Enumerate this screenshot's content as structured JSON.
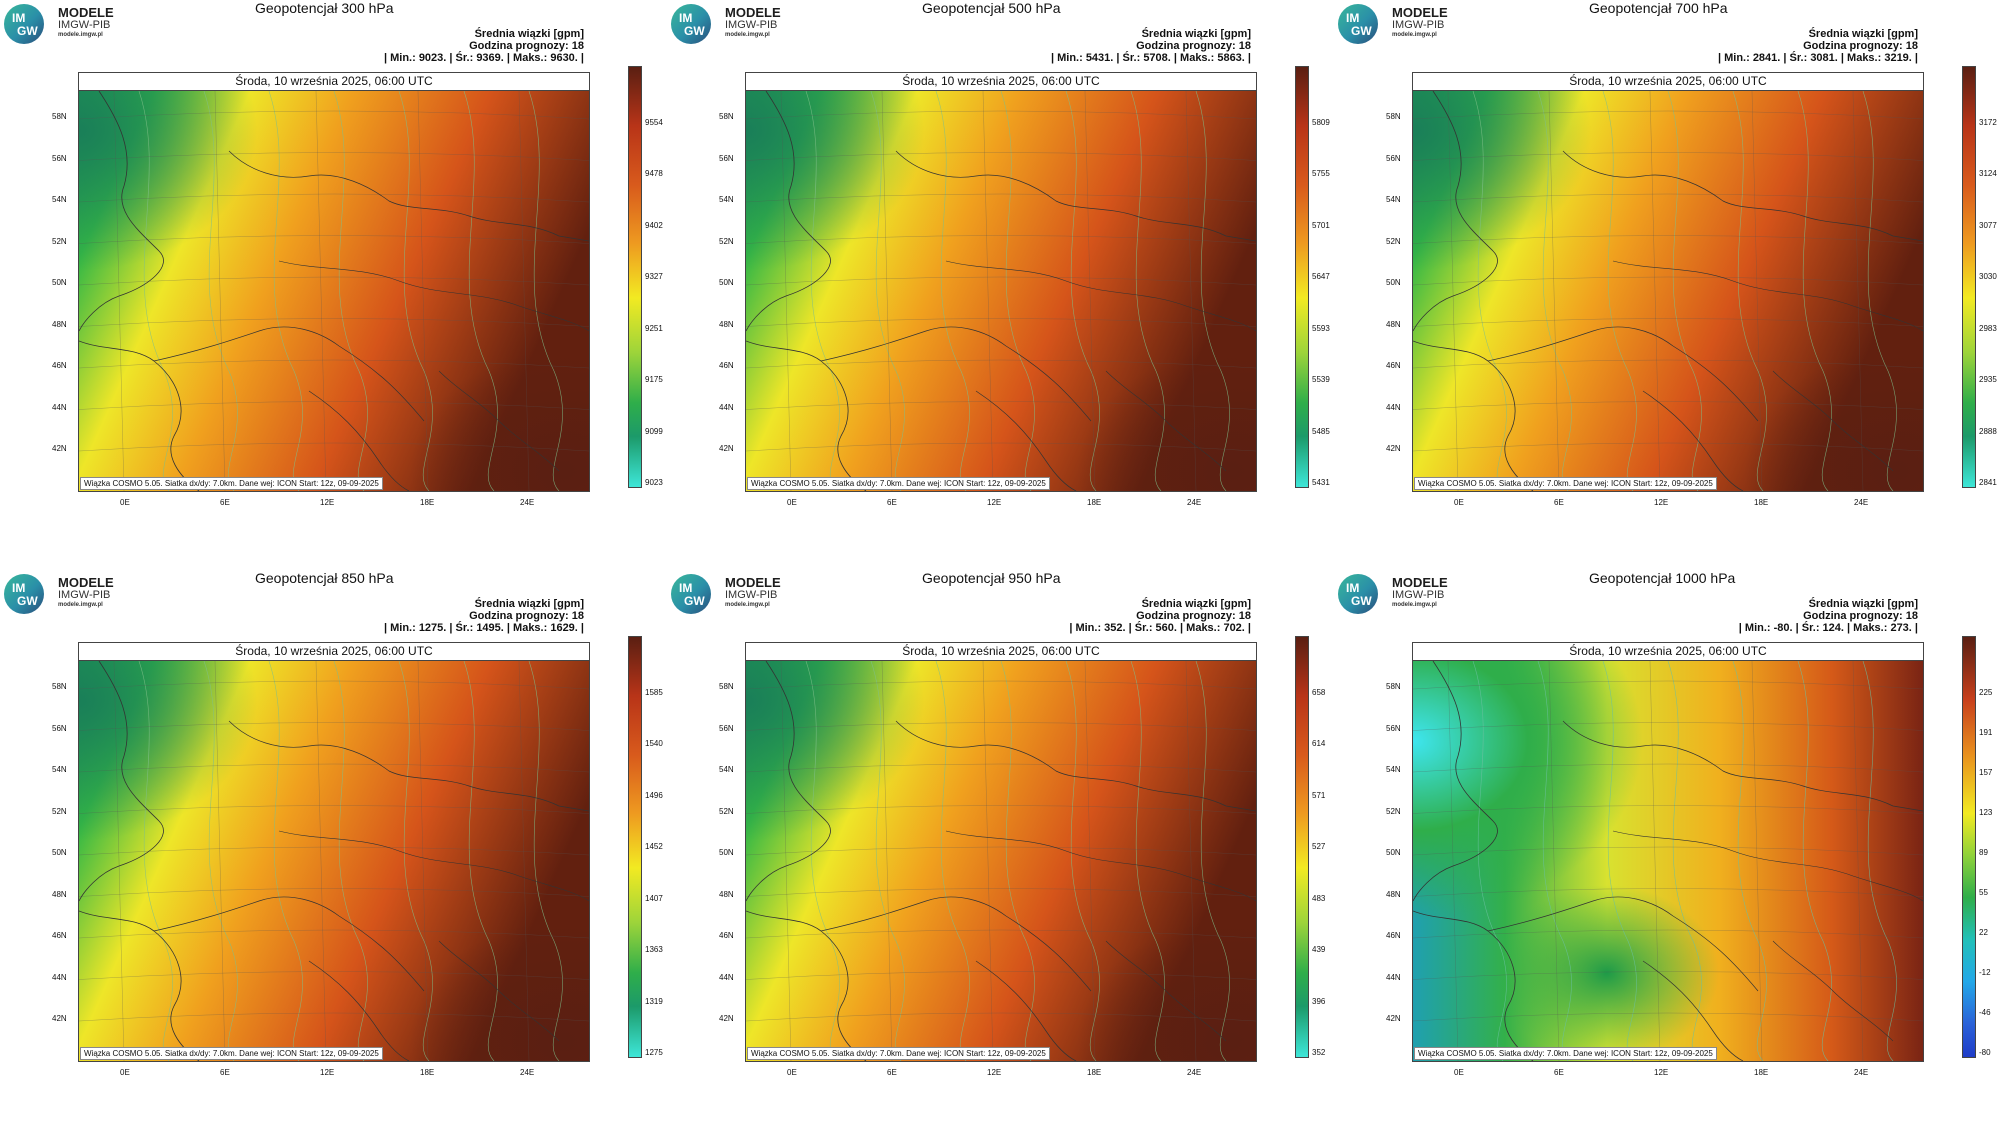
{
  "logo": {
    "badge_top": "IM",
    "badge_bottom": "GW",
    "title": "MODELE",
    "subtitle": "IMGW-PIB",
    "url": "modele.imgw.pl"
  },
  "common": {
    "meta_title": "Średnia wiązki [gpm]",
    "meta_hour": "Godzina prognozy: 18",
    "date_bar": "Środa, 10 września 2025, 06:00 UTC",
    "footer": "Wiązka COSMO 5.05. Siatka dx/dy: 7.0km. Dane wej: ICON Start: 12z, 09-09-2025",
    "lat_labels": [
      "58N",
      "56N",
      "54N",
      "52N",
      "50N",
      "48N",
      "46N",
      "44N",
      "42N"
    ],
    "lon_labels": [
      "0E",
      "6E",
      "12E",
      "18E",
      "24E"
    ]
  },
  "panels": [
    {
      "title": "Geopotencjał 300 hPa",
      "stats": "| Min.: 9023. | Śr.: 9369. | Maks.: 9630. |",
      "ticks": [
        "9554",
        "9478",
        "9402",
        "9327",
        "9251",
        "9175",
        "9099",
        "9023"
      ],
      "scheme": "warm"
    },
    {
      "title": "Geopotencjał 500 hPa",
      "stats": "| Min.: 5431. | Śr.: 5708. | Maks.: 5863. |",
      "ticks": [
        "5809",
        "5755",
        "5701",
        "5647",
        "5593",
        "5539",
        "5485",
        "5431"
      ],
      "scheme": "warm"
    },
    {
      "title": "Geopotencjał 700 hPa",
      "stats": "| Min.: 2841. | Śr.: 3081. | Maks.: 3219. |",
      "ticks": [
        "3172",
        "3124",
        "3077",
        "3030",
        "2983",
        "2935",
        "2888",
        "2841"
      ],
      "scheme": "warm"
    },
    {
      "title": "Geopotencjał 850 hPa",
      "stats": "| Min.: 1275. | Śr.: 1495. | Maks.: 1629. |",
      "ticks": [
        "1585",
        "1540",
        "1496",
        "1452",
        "1407",
        "1363",
        "1319",
        "1275"
      ],
      "scheme": "warm"
    },
    {
      "title": "Geopotencjał 950 hPa",
      "stats": "| Min.: 352. | Śr.: 560. | Maks.: 702. |",
      "ticks": [
        "658",
        "614",
        "571",
        "527",
        "483",
        "439",
        "396",
        "352"
      ],
      "scheme": "warm"
    },
    {
      "title": "Geopotencjał 1000 hPa",
      "stats": "| Min.: -80. | Śr.: 124. | Maks.: 273. |",
      "ticks": [
        "225",
        "191",
        "157",
        "123",
        "89",
        "55",
        "22",
        "-12",
        "-46",
        "-80"
      ],
      "scheme": "cool"
    }
  ],
  "colors": {
    "dark_red": "#5a1f12",
    "red": "#c8401c",
    "orange": "#e8901e",
    "yellow": "#f2ea22",
    "green": "#2fae4a",
    "cyan": "#3ee6d8",
    "blue": "#2a4fd6"
  }
}
